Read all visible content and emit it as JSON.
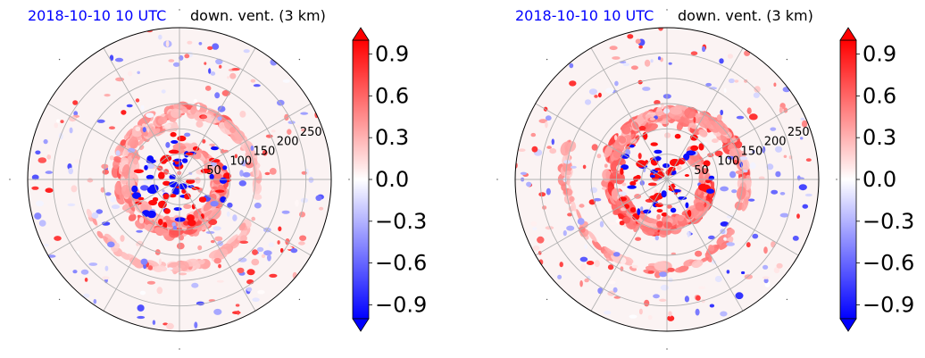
{
  "colors": {
    "date": "#0000ff",
    "negative": "#0000ff",
    "positive": "#ff0000",
    "neutral": "#ffffff",
    "grid": "#b0b0b0"
  },
  "chart_data": [
    {
      "type": "heatmap",
      "projection": "polar",
      "date": "2018-10-10 10 UTC",
      "variable": "down. vent. (3 km)",
      "radial_ticks": [
        "50",
        "100",
        "150",
        "200",
        "250"
      ],
      "rmax": 300,
      "colorbar": {
        "ticks": [
          "−0.9",
          "−0.6",
          "−0.3",
          "0.0",
          "0.3",
          "0.6",
          "0.9"
        ],
        "vmin": -1.0,
        "vmax": 1.0,
        "colormap": "bwr",
        "extend": "both"
      }
    },
    {
      "type": "heatmap",
      "projection": "polar",
      "date": "2018-10-10 10 UTC",
      "variable": "down. vent. (3 km)",
      "radial_ticks": [
        "50",
        "100",
        "150",
        "200",
        "250"
      ],
      "rmax": 300,
      "colorbar": {
        "ticks": [
          "−0.9",
          "−0.6",
          "−0.3",
          "0.0",
          "0.3",
          "0.6",
          "0.9"
        ],
        "vmin": -1.0,
        "vmax": 1.0,
        "colormap": "bwr",
        "extend": "both"
      }
    }
  ]
}
